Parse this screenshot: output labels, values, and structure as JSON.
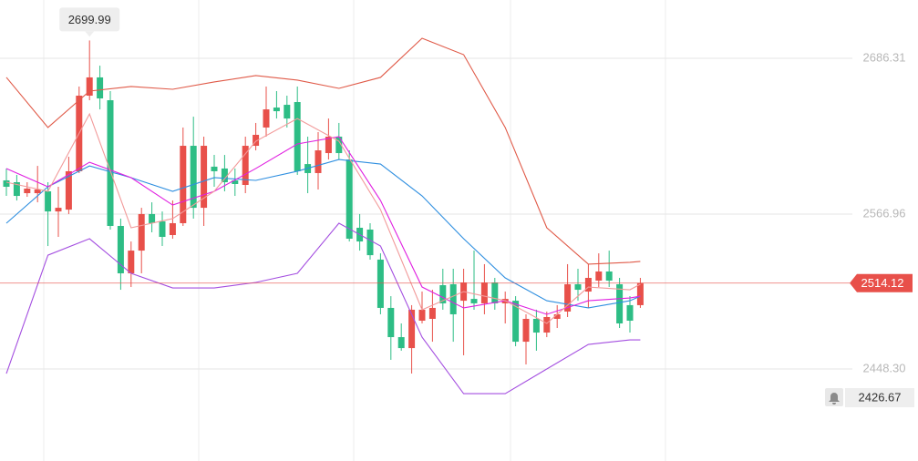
{
  "chart_data": {
    "type": "candlestick",
    "ylim": [
      2377.8,
      2731.0
    ],
    "yticks": [
      2686.31,
      2566.96,
      {
        "value": 2448.3,
        "label": "2448.30"
      }
    ],
    "grid": true,
    "up_color": "#e8504a",
    "down_color": "#2dbd85",
    "open": [
      2592.8,
      2591.4,
      2583.0,
      2583.0,
      2584.4,
      2569.0,
      2570.4,
      2599.8,
      2657.7,
      2671.7,
      2654.2,
      2557.9,
      2521.6,
      2539.0,
      2567.0,
      2561.4,
      2550.9,
      2560.0,
      2619.3,
      2571.8,
      2603.3,
      2601.9,
      2592.8,
      2589.3,
      2619.3,
      2633.3,
      2648.6,
      2650.7,
      2652.8,
      2605.3,
      2598.4,
      2613.7,
      2626.3,
      2608.8,
      2556.5,
      2555.1,
      2532.1,
      2495.1,
      2472.7,
      2464.3,
      2485.3,
      2486.7,
      2512.5,
      2513.2,
      2500.6,
      2502.0,
      2498.6,
      2514.6,
      2498.6,
      2500.6,
      2469.2,
      2486.7,
      2476.2,
      2486.7,
      2492.3,
      2513.2,
      2507.6,
      2516.0,
      2523.0,
      2513.2,
      2497.2,
      2497.2
    ],
    "high": [
      2601.9,
      2597.0,
      2591.4,
      2603.9,
      2591.4,
      2587.9,
      2610.9,
      2664.7,
      2699.99,
      2680.7,
      2661.2,
      2563.5,
      2546.0,
      2571.8,
      2576.0,
      2569.0,
      2577.4,
      2633.3,
      2641.6,
      2626.3,
      2612.3,
      2612.3,
      2601.9,
      2626.3,
      2636.8,
      2664.7,
      2661.2,
      2657.7,
      2664.7,
      2626.3,
      2629.8,
      2640.2,
      2636.8,
      2615.8,
      2567.0,
      2560.0,
      2536.9,
      2504.1,
      2483.2,
      2497.2,
      2507.6,
      2509.0,
      2525.1,
      2525.1,
      2525.1,
      2539.0,
      2528.6,
      2518.1,
      2507.6,
      2504.1,
      2490.2,
      2493.7,
      2492.3,
      2497.2,
      2528.6,
      2525.1,
      2528.6,
      2536.9,
      2539.0,
      2518.1,
      2504.1,
      2518.1
    ],
    "low": [
      2580.9,
      2577.4,
      2580.2,
      2576.0,
      2542.5,
      2549.5,
      2567.0,
      2598.4,
      2654.2,
      2647.2,
      2555.1,
      2509.0,
      2511.1,
      2521.6,
      2553.0,
      2542.5,
      2548.1,
      2557.9,
      2563.5,
      2557.9,
      2587.9,
      2584.4,
      2580.9,
      2583.0,
      2615.8,
      2626.3,
      2640.2,
      2633.3,
      2597.0,
      2583.0,
      2585.8,
      2608.8,
      2608.8,
      2546.0,
      2539.0,
      2532.1,
      2490.2,
      2455.3,
      2462.3,
      2444.8,
      2483.2,
      2469.2,
      2493.7,
      2469.2,
      2458.8,
      2493.7,
      2490.2,
      2493.7,
      2483.2,
      2465.7,
      2451.8,
      2462.3,
      2472.7,
      2479.7,
      2488.1,
      2500.6,
      2495.1,
      2511.1,
      2511.1,
      2479.7,
      2476.2,
      2495.1
    ],
    "close": [
      2587.9,
      2580.9,
      2586.5,
      2585.8,
      2569.0,
      2571.8,
      2599.8,
      2657.7,
      2671.7,
      2655.6,
      2557.9,
      2521.6,
      2539.0,
      2567.0,
      2560.0,
      2549.5,
      2560.0,
      2619.3,
      2571.8,
      2619.3,
      2599.8,
      2591.4,
      2590.0,
      2619.3,
      2627.7,
      2647.2,
      2645.8,
      2640.2,
      2599.8,
      2598.4,
      2615.8,
      2626.3,
      2613.7,
      2548.1,
      2546.0,
      2535.5,
      2495.1,
      2472.7,
      2464.3,
      2493.7,
      2493.7,
      2495.1,
      2498.6,
      2490.2,
      2514.6,
      2498.6,
      2514.6,
      2498.6,
      2502.0,
      2469.2,
      2486.7,
      2476.2,
      2488.1,
      2490.2,
      2513.2,
      2509.0,
      2518.1,
      2523.0,
      2516.0,
      2483.2,
      2485.3,
      2514.12
    ],
    "series": [
      {
        "color": "#e05a48",
        "x": [
          0,
          4,
          8,
          12,
          16,
          20,
          24,
          28,
          32,
          36,
          40,
          44,
          48,
          52,
          56,
          60,
          61
        ],
        "values": [
          2671.7,
          2633.3,
          2661.2,
          2664.7,
          2662.6,
          2668.2,
          2673.1,
          2669.6,
          2663.3,
          2671.7,
          2701.7,
          2689.1,
          2633.3,
          2556.5,
          2528.6,
          2530.0,
          2530.7
        ]
      },
      {
        "color": "#a44fe0",
        "x": [
          0,
          4,
          8,
          12,
          16,
          20,
          24,
          28,
          32,
          36,
          40,
          44,
          48,
          52,
          56,
          60,
          61
        ],
        "values": [
          2444.8,
          2535.5,
          2548.1,
          2521.6,
          2510.4,
          2510.4,
          2514.6,
          2521.6,
          2560.0,
          2542.5,
          2472.7,
          2429.4,
          2429.4,
          2448.3,
          2467.1,
          2470.6,
          2470.6
        ]
      },
      {
        "color": "#2f8fe0",
        "x": [
          0,
          4,
          8,
          12,
          16,
          20,
          24,
          28,
          32,
          36,
          40,
          44,
          48,
          52,
          56,
          60,
          61
        ],
        "values": [
          2560.0,
          2587.9,
          2603.9,
          2594.9,
          2584.4,
          2594.9,
          2592.8,
          2599.8,
          2608.8,
          2605.3,
          2580.9,
          2548.1,
          2518.1,
          2500.6,
          2495.1,
          2500.6,
          2504.1
        ]
      },
      {
        "color": "#e020e0",
        "x": [
          0,
          4,
          8,
          12,
          16,
          20,
          24,
          28,
          32,
          36,
          40,
          44,
          48,
          52,
          56,
          60,
          61
        ],
        "values": [
          2601.9,
          2587.9,
          2606.7,
          2594.9,
          2573.9,
          2584.4,
          2601.9,
          2620.7,
          2626.3,
          2577.4,
          2511.1,
          2495.1,
          2500.6,
          2490.2,
          2500.6,
          2502.7,
          2504.1
        ]
      },
      {
        "color": "#f29a9a",
        "x": [
          0,
          4,
          8,
          12,
          16,
          20,
          24,
          28,
          32,
          36,
          40,
          44,
          48,
          52,
          56,
          60,
          61
        ],
        "values": [
          2591.4,
          2584.4,
          2643.7,
          2556.5,
          2563.5,
          2584.4,
          2622.8,
          2640.2,
          2622.8,
          2570.4,
          2493.7,
          2507.6,
          2500.6,
          2483.2,
          2511.1,
          2509.0,
          2513.2
        ]
      }
    ],
    "alert_price": 2426.67
  }
}
